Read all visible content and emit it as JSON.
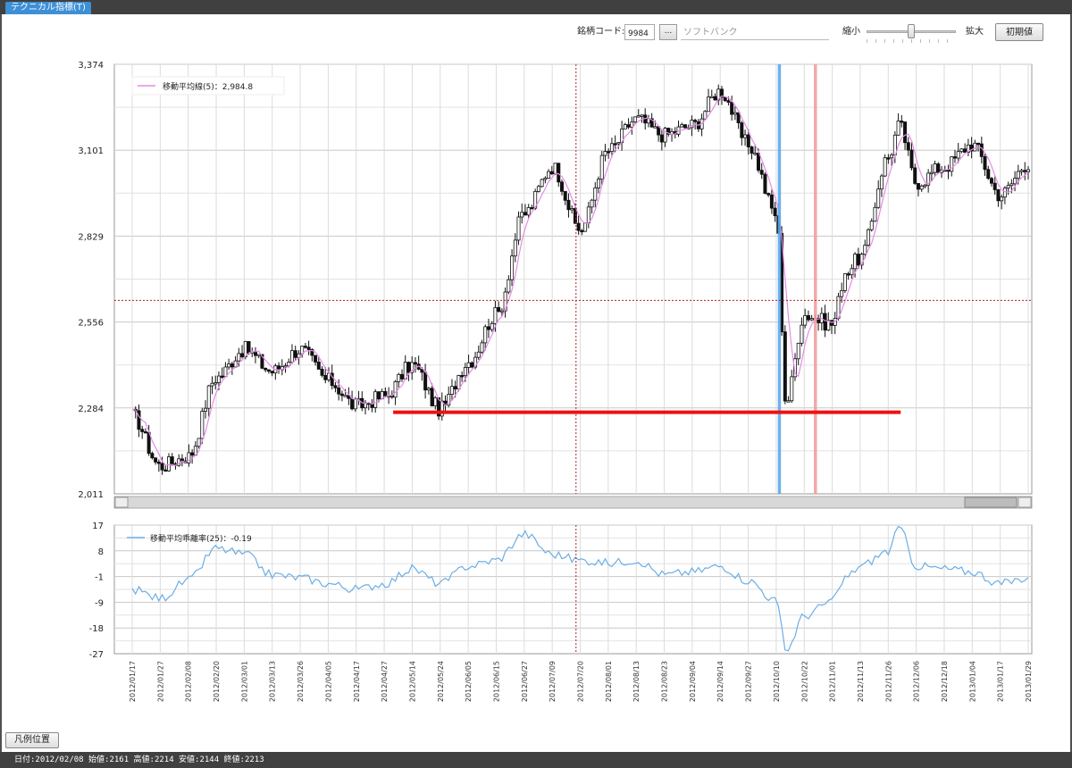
{
  "window": {
    "tab_label": "テクニカル指標(T)"
  },
  "toolbar": {
    "code_label": "銘柄コード:",
    "code_value": "9984",
    "code_button": "...",
    "name_value": "ソフトバンク",
    "zoom_out_label": "縮小",
    "zoom_in_label": "拡大",
    "zoom_level": 0.5,
    "reset_button": "初期値"
  },
  "legend_button": "凡例位置",
  "status_bar": "日付:2012/02/08 始値:2161 高値:2214 安値:2144 終値:2213",
  "colors": {
    "ma_line": "#e68be6",
    "deviation_line": "#6aaee6",
    "support_line": "#ee1111",
    "crosshair": "#b02020",
    "marker_blue": "#5aaaf0",
    "marker_pink": "#f0a0a0"
  },
  "chart_data": [
    {
      "type": "candlestick",
      "ylim": [
        2011,
        3374
      ],
      "yticks": [
        "3,374",
        "3,101",
        "2,829",
        "2,556",
        "2,284",
        "2,011"
      ],
      "legend": "移動平均線(5)：2,984.8",
      "grid": true,
      "legend_position": "top-left",
      "x_labels": [
        "2012/01/17",
        "2012/01/27",
        "2012/02/08",
        "2012/02/20",
        "2012/03/01",
        "2012/03/13",
        "2012/03/26",
        "2012/04/05",
        "2012/04/17",
        "2012/04/27",
        "2012/05/14",
        "2012/05/24",
        "2012/06/05",
        "2012/06/15",
        "2012/06/27",
        "2012/07/09",
        "2012/07/20",
        "2012/08/01",
        "2012/08/13",
        "2012/08/23",
        "2012/09/04",
        "2012/09/14",
        "2012/09/27",
        "2012/10/10",
        "2012/10/22",
        "2012/11/01",
        "2012/11/13",
        "2012/11/26",
        "2012/12/06",
        "2012/12/18",
        "2013/01/04",
        "2013/01/17",
        "2013/01/29"
      ],
      "close_path": [
        {
          "i": 0,
          "v": 2260
        },
        {
          "i": 1,
          "v": 2100
        },
        {
          "i": 2,
          "v": 2130
        },
        {
          "i": 3,
          "v": 2380
        },
        {
          "i": 4,
          "v": 2470
        },
        {
          "i": 5,
          "v": 2400
        },
        {
          "i": 6,
          "v": 2470
        },
        {
          "i": 7,
          "v": 2370
        },
        {
          "i": 8,
          "v": 2290
        },
        {
          "i": 9,
          "v": 2320
        },
        {
          "i": 10,
          "v": 2420
        },
        {
          "i": 11,
          "v": 2280
        },
        {
          "i": 12,
          "v": 2430
        },
        {
          "i": 13,
          "v": 2580
        },
        {
          "i": 14,
          "v": 2900
        },
        {
          "i": 15,
          "v": 3050
        },
        {
          "i": 16,
          "v": 2850
        },
        {
          "i": 17,
          "v": 3100
        },
        {
          "i": 18,
          "v": 3200
        },
        {
          "i": 19,
          "v": 3150
        },
        {
          "i": 20,
          "v": 3180
        },
        {
          "i": 21,
          "v": 3290
        },
        {
          "i": 22,
          "v": 3120
        },
        {
          "i": 23,
          "v": 2900
        },
        {
          "i": 23.35,
          "v": 2300
        },
        {
          "i": 24,
          "v": 2580
        },
        {
          "i": 25,
          "v": 2550
        },
        {
          "i": 25.5,
          "v": 2720
        },
        {
          "i": 26,
          "v": 2760
        },
        {
          "i": 27,
          "v": 3080
        },
        {
          "i": 27.4,
          "v": 3180
        },
        {
          "i": 28,
          "v": 3000
        },
        {
          "i": 29,
          "v": 3050
        },
        {
          "i": 30,
          "v": 3120
        },
        {
          "i": 31,
          "v": 2960
        },
        {
          "i": 32,
          "v": 3060
        }
      ],
      "support_line": {
        "value": 2270,
        "from": "2012/04/27",
        "to": "2012/11/26"
      },
      "crosshair": {
        "value": 2625,
        "date": "2012/07/20"
      },
      "markers": [
        {
          "date": "2012/10/22",
          "color_key": "marker_blue"
        },
        {
          "date": "2012/11/01",
          "color_key": "marker_pink"
        }
      ]
    },
    {
      "type": "line",
      "ylim": [
        -27,
        17
      ],
      "yticks": [
        "17",
        "8",
        "-1",
        "-9",
        "-18",
        "-27"
      ],
      "legend": "移動平均乖離率(25)：-0.19",
      "grid": true,
      "legend_position": "top-left",
      "path": [
        {
          "i": 0,
          "v": -5
        },
        {
          "i": 1,
          "v": -8
        },
        {
          "i": 2,
          "v": -2
        },
        {
          "i": 3,
          "v": 9
        },
        {
          "i": 4,
          "v": 7
        },
        {
          "i": 5,
          "v": 0
        },
        {
          "i": 6,
          "v": -1
        },
        {
          "i": 7,
          "v": -3
        },
        {
          "i": 8,
          "v": -5
        },
        {
          "i": 9,
          "v": -3
        },
        {
          "i": 10,
          "v": 2
        },
        {
          "i": 11,
          "v": -3
        },
        {
          "i": 12,
          "v": 3
        },
        {
          "i": 13,
          "v": 5
        },
        {
          "i": 14,
          "v": 14
        },
        {
          "i": 15,
          "v": 7
        },
        {
          "i": 16,
          "v": 5
        },
        {
          "i": 17,
          "v": 4
        },
        {
          "i": 18,
          "v": 5
        },
        {
          "i": 19,
          "v": 0
        },
        {
          "i": 20,
          "v": 1
        },
        {
          "i": 21,
          "v": 3
        },
        {
          "i": 22,
          "v": -2
        },
        {
          "i": 23,
          "v": -9
        },
        {
          "i": 23.35,
          "v": -26
        },
        {
          "i": 24,
          "v": -14
        },
        {
          "i": 25,
          "v": -9
        },
        {
          "i": 25.5,
          "v": -1
        },
        {
          "i": 26,
          "v": 3
        },
        {
          "i": 27,
          "v": 8
        },
        {
          "i": 27.4,
          "v": 16
        },
        {
          "i": 28,
          "v": 3
        },
        {
          "i": 29,
          "v": 2
        },
        {
          "i": 30,
          "v": 1
        },
        {
          "i": 31,
          "v": -3
        },
        {
          "i": 32,
          "v": -1
        }
      ]
    }
  ]
}
